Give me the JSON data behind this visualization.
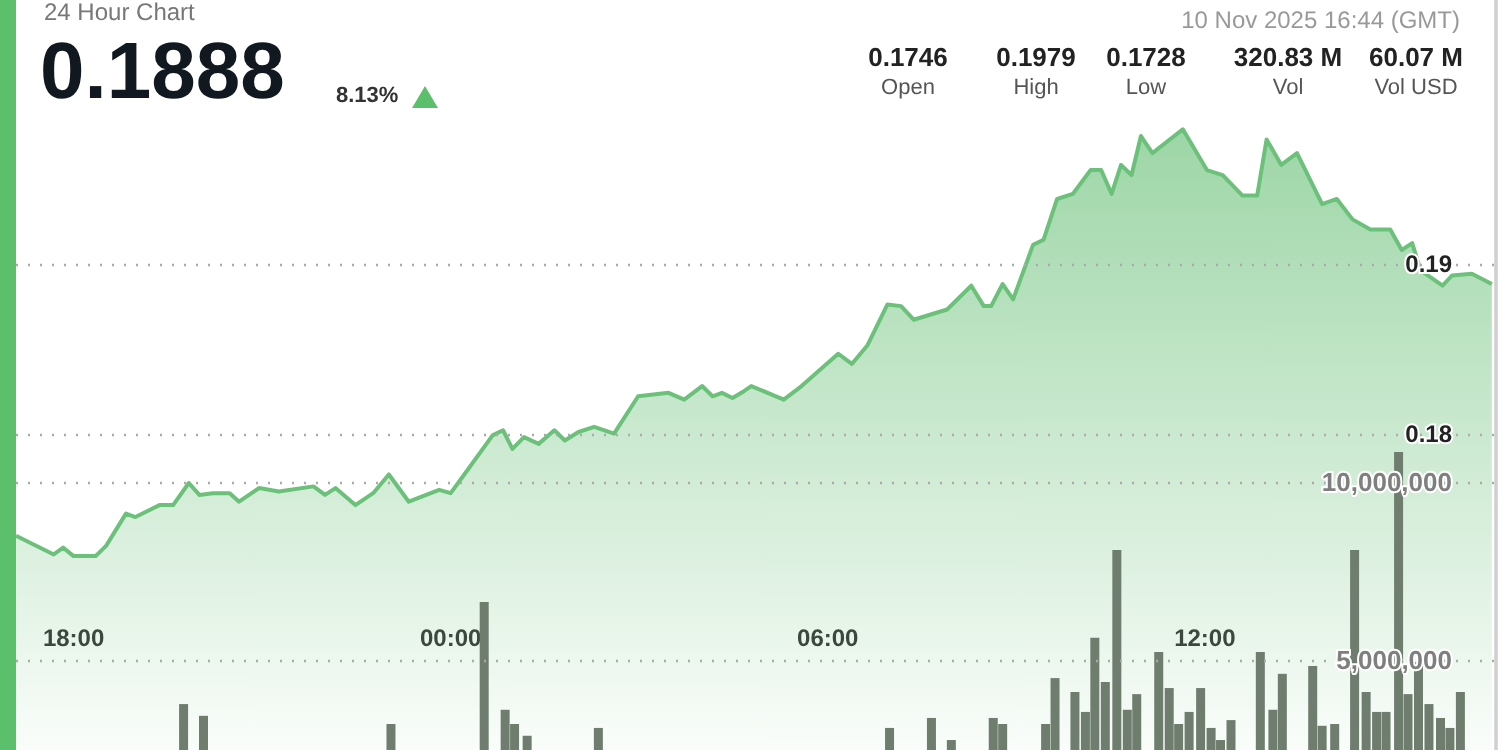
{
  "chart_data": {
    "type": "area",
    "title": "24 Hour Chart",
    "subtitle": "0.1888",
    "annotations": [
      "8.13%",
      "10 Nov 2025 16:44 (GMT)",
      "0.1746",
      "Open",
      "0.1979",
      "High",
      "0.1728",
      "Low",
      "320.83 M",
      "Vol",
      "60.07 M",
      "Vol USD"
    ],
    "xlim": [
      "2025-11-09T17:05",
      "2025-11-10T16:38"
    ],
    "xticks": [
      {
        "value": "2025-11-09T18:00",
        "label": "18:00"
      },
      {
        "value": "2025-11-10T00:00",
        "label": "00:00"
      },
      {
        "value": "2025-11-10T06:00",
        "label": "06:00"
      },
      {
        "value": "2025-11-10T12:00",
        "label": "12:00"
      }
    ],
    "ylim": [
      0.1614,
      0.2055
    ],
    "yticks": [
      0.18,
      0.19
    ],
    "y2lim": [
      2470000,
      23540000
    ],
    "y2ticks": [
      {
        "value": 5000000,
        "label": "5,000,000"
      },
      {
        "value": 10000000,
        "label": "10,000,000"
      }
    ],
    "grid": "y",
    "marker": "none",
    "series": [
      {
        "color": "#6cc17a",
        "x": [
          "2025-11-09T17:05",
          "2025-11-09T17:41",
          "2025-11-09T17:50",
          "2025-11-09T18:00",
          "2025-11-09T18:21",
          "2025-11-09T18:31",
          "2025-11-09T18:50",
          "2025-11-09T18:59",
          "2025-11-09T19:22",
          "2025-11-09T19:35",
          "2025-11-09T19:50",
          "2025-11-09T20:00",
          "2025-11-09T20:13",
          "2025-11-09T20:29",
          "2025-11-09T20:38",
          "2025-11-09T20:57",
          "2025-11-09T21:16",
          "2025-11-09T21:49",
          "2025-11-09T22:00",
          "2025-11-09T22:10",
          "2025-11-09T22:29",
          "2025-11-09T22:46",
          "2025-11-09T23:01",
          "2025-11-09T23:20",
          "2025-11-09T23:49",
          "2025-11-10T00:00",
          "2025-11-10T00:13",
          "2025-11-10T00:40",
          "2025-11-10T00:50",
          "2025-11-10T00:59",
          "2025-11-10T01:10",
          "2025-11-10T01:24",
          "2025-11-10T01:39",
          "2025-11-10T01:49",
          "2025-11-10T02:02",
          "2025-11-10T02:17",
          "2025-11-10T02:36",
          "2025-11-10T02:59",
          "2025-11-10T03:28",
          "2025-11-10T03:43",
          "2025-11-10T04:00",
          "2025-11-10T04:10",
          "2025-11-10T04:19",
          "2025-11-10T04:29",
          "2025-11-10T04:40",
          "2025-11-10T04:47",
          "2025-11-10T05:18",
          "2025-11-10T05:35",
          "2025-11-10T06:10",
          "2025-11-10T06:23",
          "2025-11-10T06:38",
          "2025-11-10T06:57",
          "2025-11-10T07:10",
          "2025-11-10T07:22",
          "2025-11-10T07:54",
          "2025-11-10T08:17",
          "2025-11-10T08:29",
          "2025-11-10T08:36",
          "2025-11-10T08:47",
          "2025-11-10T08:57",
          "2025-11-10T09:16",
          "2025-11-10T09:26",
          "2025-11-10T09:39",
          "2025-11-10T09:54",
          "2025-11-10T10:11",
          "2025-11-10T10:21",
          "2025-11-10T10:31",
          "2025-11-10T10:40",
          "2025-11-10T10:50",
          "2025-11-10T10:59",
          "2025-11-10T11:10",
          "2025-11-10T11:39",
          "2025-11-10T12:02",
          "2025-11-10T12:17",
          "2025-11-10T12:36",
          "2025-11-10T12:50",
          "2025-11-10T12:59",
          "2025-11-10T13:13",
          "2025-11-10T13:28",
          "2025-11-10T13:52",
          "2025-11-10T14:06",
          "2025-11-10T14:21",
          "2025-11-10T14:38",
          "2025-11-10T14:57",
          "2025-11-10T15:08",
          "2025-11-10T15:18",
          "2025-11-10T15:26",
          "2025-11-10T15:47",
          "2025-11-10T15:56",
          "2025-11-10T16:15",
          "2025-11-10T16:34"
        ],
        "values": [
          0.174,
          0.1729,
          0.1733,
          0.1728,
          0.1728,
          0.1734,
          0.1753,
          0.1751,
          0.1758,
          0.1758,
          0.1771,
          0.1764,
          0.1765,
          0.1765,
          0.176,
          0.1768,
          0.1766,
          0.1769,
          0.1764,
          0.1768,
          0.1758,
          0.1765,
          0.1776,
          0.176,
          0.1767,
          0.1765,
          0.1776,
          0.1799,
          0.1802,
          0.1791,
          0.1798,
          0.1794,
          0.1802,
          0.1796,
          0.1801,
          0.1804,
          0.18,
          0.1822,
          0.1824,
          0.182,
          0.1828,
          0.1822,
          0.1824,
          0.1821,
          0.1825,
          0.1828,
          0.182,
          0.1828,
          0.1847,
          0.1841,
          0.1852,
          0.1876,
          0.1875,
          0.1867,
          0.1873,
          0.1887,
          0.1875,
          0.1875,
          0.1888,
          0.1879,
          0.1911,
          0.1914,
          0.1938,
          0.1941,
          0.1955,
          0.1955,
          0.1941,
          0.1958,
          0.1952,
          0.1975,
          0.1965,
          0.1979,
          0.1955,
          0.1952,
          0.194,
          0.194,
          0.1973,
          0.1958,
          0.1965,
          0.1935,
          0.1938,
          0.1926,
          0.192,
          0.192,
          0.1908,
          0.1912,
          0.1896,
          0.1887,
          0.1893,
          0.1894,
          0.1888
        ]
      },
      {
        "type": "bar",
        "axis": "y2",
        "color": "#6e7d6e",
        "x": [
          "2025-11-09T19:45",
          "2025-11-09T20:04",
          "2025-11-09T23:03",
          "2025-11-10T00:32",
          "2025-11-10T00:52",
          "2025-11-10T01:01",
          "2025-11-10T01:13",
          "2025-11-10T02:21",
          "2025-11-10T06:59",
          "2025-11-10T07:39",
          "2025-11-10T07:58",
          "2025-11-10T08:38",
          "2025-11-10T08:47",
          "2025-11-10T09:28",
          "2025-11-10T09:37",
          "2025-11-10T09:56",
          "2025-11-10T10:06",
          "2025-11-10T10:15",
          "2025-11-10T10:25",
          "2025-11-10T10:36",
          "2025-11-10T10:46",
          "2025-11-10T10:55",
          "2025-11-10T11:16",
          "2025-11-10T11:26",
          "2025-11-10T11:35",
          "2025-11-10T11:45",
          "2025-11-10T11:56",
          "2025-11-10T12:06",
          "2025-11-10T12:15",
          "2025-11-10T12:25",
          "2025-11-10T12:53",
          "2025-11-10T13:05",
          "2025-11-10T13:14",
          "2025-11-10T13:43",
          "2025-11-10T13:52",
          "2025-11-10T14:04",
          "2025-11-10T14:23",
          "2025-11-10T14:34",
          "2025-11-10T14:44",
          "2025-11-10T14:53",
          "2025-11-10T15:05",
          "2025-11-10T15:14",
          "2025-11-10T15:24",
          "2025-11-10T15:34",
          "2025-11-10T15:45",
          "2025-11-10T15:54",
          "2025-11-10T16:04"
        ],
        "values": [
          3760000,
          3430000,
          3200000,
          6630000,
          3600000,
          3200000,
          2870000,
          3090000,
          3090000,
          3370000,
          2750000,
          3370000,
          3200000,
          3200000,
          4490000,
          4100000,
          3540000,
          5620000,
          4380000,
          8090000,
          3600000,
          4040000,
          5220000,
          4210000,
          3200000,
          3540000,
          4210000,
          3090000,
          2750000,
          3310000,
          5220000,
          3600000,
          4610000,
          4830000,
          3150000,
          3200000,
          8090000,
          4100000,
          3540000,
          3540000,
          10840000,
          4040000,
          4940000,
          3760000,
          3370000,
          3090000,
          4100000
        ]
      }
    ]
  }
}
